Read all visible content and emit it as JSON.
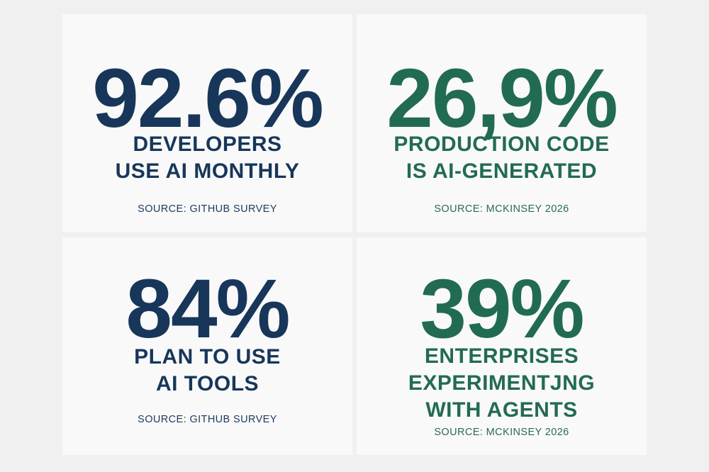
{
  "colors": {
    "navy": "#17365a",
    "green": "#226b53",
    "background": "#f0f0f0",
    "card": "#f9f9f9"
  },
  "cards": [
    {
      "value": "92.6%",
      "label": "DEVELOPERS\nUSE AI MONTHLY",
      "source": "SOURCE: GITHUB SURVEY",
      "color": "navy"
    },
    {
      "value": "26,9%",
      "label": "PRODUCTION CODE\nIS AI-GENERATED",
      "source": "SOURCE: MCKINSEY 2026",
      "color": "green"
    },
    {
      "value": "84%",
      "label": "PLAN TO USE\nAI TOOLS",
      "source": "SOURCE: GITHUB SURVEY",
      "color": "navy"
    },
    {
      "value": "39%",
      "label": "ENTERPRISES\nEXPERIMENTJNG\nWITH AGENTS",
      "source": "SOURCE: MCKINSEY 2026",
      "color": "green"
    }
  ]
}
